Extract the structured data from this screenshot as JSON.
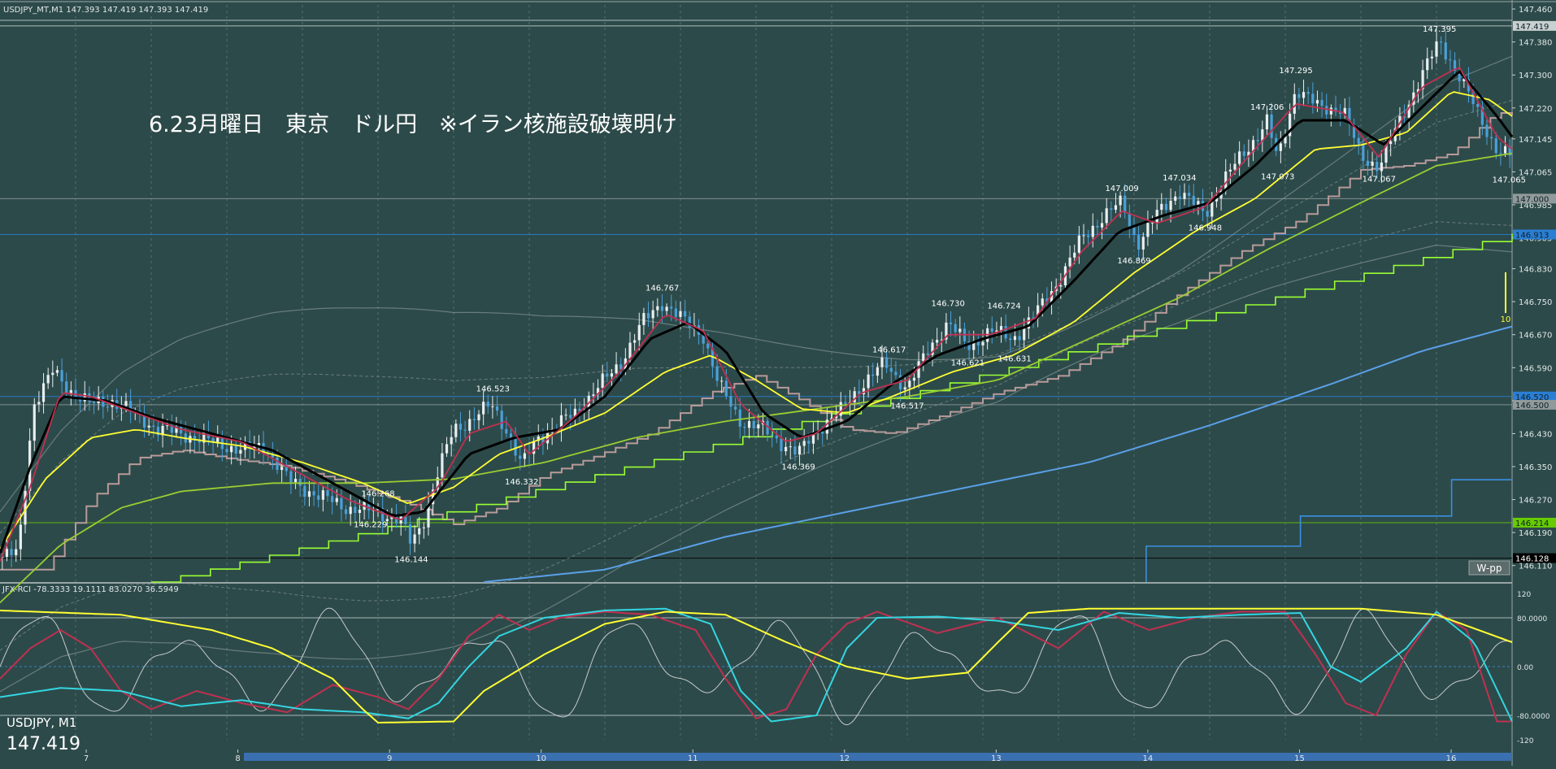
{
  "header": {
    "symbol_info": "USDJPY_MT,M1  147.393 147.419 147.393 147.419",
    "annotation": "6.23月曜日　東京　ドル円　※イラン核施設破壊明け"
  },
  "indicator_header": "JFX-RCI -78.3333 19.1111 83.0270 36.5949",
  "corner": {
    "symbol": "USDJPY, M1",
    "price": "147.419"
  },
  "wpp_label": "W-pp",
  "volume_label": "10",
  "colors": {
    "background": "#2d4a4a",
    "grid": "#6f8a8a",
    "candle_up": "#e8eef0",
    "candle_down": "#4aa0d8",
    "ma_fast": "#c03050",
    "ma_mid": "#000000",
    "ma_slow": "#ffff33",
    "ma_long": "#9acd32",
    "ichimoku": "#b89a9a",
    "step_green": "#99ff33",
    "trend_blue": "#5aa0e8",
    "rci_short": "#e0e0e0",
    "rci_mid": "#c03050",
    "rci_long": "#33d6e0",
    "rci_slow": "#ffff33"
  },
  "chart_data": {
    "type": "line",
    "price_axis": {
      "range": [
        146.07,
        147.47
      ],
      "ticks": [
        "147.460",
        "147.380",
        "147.300",
        "147.220",
        "147.145",
        "147.065",
        "146.985",
        "146.905",
        "146.830",
        "146.750",
        "146.670",
        "146.590",
        "146.510",
        "146.430",
        "146.350",
        "146.270",
        "146.190",
        "146.110"
      ]
    },
    "price_markers": [
      {
        "value": 147.419,
        "label": "147.419",
        "color": "#c8d0d0"
      },
      {
        "value": 147.0,
        "label": "147.000",
        "color": "#909a9a"
      },
      {
        "value": 146.913,
        "label": "146.913",
        "color": "#2a7fd4"
      },
      {
        "value": 146.52,
        "label": "146.520",
        "color": "#2a7fd4"
      },
      {
        "value": 146.5,
        "label": "146.500",
        "color": "#909a9a"
      },
      {
        "value": 146.214,
        "label": "146.214",
        "color": "#66cc00"
      },
      {
        "value": 146.128,
        "label": "146.128",
        "color": "#000000"
      }
    ],
    "time_axis": {
      "labels": [
        "7",
        "8",
        "9",
        "10",
        "11",
        "12",
        "13",
        "14",
        "15",
        "16"
      ]
    },
    "price_labels": [
      {
        "t": 0.245,
        "v": 146.229,
        "text": "146.229"
      },
      {
        "t": 0.25,
        "v": 146.268,
        "text": "146.268"
      },
      {
        "t": 0.272,
        "v": 146.144,
        "text": "146.144"
      },
      {
        "t": 0.326,
        "v": 146.523,
        "text": "146.523"
      },
      {
        "t": 0.345,
        "v": 146.332,
        "text": "146.332"
      },
      {
        "t": 0.438,
        "v": 146.767,
        "text": "146.767"
      },
      {
        "t": 0.528,
        "v": 146.369,
        "text": "146.369"
      },
      {
        "t": 0.588,
        "v": 146.617,
        "text": "146.617"
      },
      {
        "t": 0.6,
        "v": 146.517,
        "text": "146.517"
      },
      {
        "t": 0.627,
        "v": 146.73,
        "text": "146.730"
      },
      {
        "t": 0.64,
        "v": 146.621,
        "text": "146.621"
      },
      {
        "t": 0.664,
        "v": 146.724,
        "text": "146.724"
      },
      {
        "t": 0.671,
        "v": 146.631,
        "text": "146.631"
      },
      {
        "t": 0.742,
        "v": 147.009,
        "text": "147.009"
      },
      {
        "t": 0.75,
        "v": 146.869,
        "text": "146.869"
      },
      {
        "t": 0.78,
        "v": 147.034,
        "text": "147.034"
      },
      {
        "t": 0.797,
        "v": 146.948,
        "text": "146.948"
      },
      {
        "t": 0.838,
        "v": 147.206,
        "text": "147.206"
      },
      {
        "t": 0.845,
        "v": 147.073,
        "text": "147.073"
      },
      {
        "t": 0.857,
        "v": 147.295,
        "text": "147.295"
      },
      {
        "t": 0.912,
        "v": 147.067,
        "text": "147.067"
      },
      {
        "t": 0.952,
        "v": 147.395,
        "text": "147.395"
      },
      {
        "t": 0.998,
        "v": 147.065,
        "text": "147.065"
      }
    ],
    "price_path": [
      [
        0.0,
        146.13
      ],
      [
        0.012,
        146.14
      ],
      [
        0.022,
        146.5
      ],
      [
        0.035,
        146.58
      ],
      [
        0.045,
        146.54
      ],
      [
        0.06,
        146.5
      ],
      [
        0.075,
        146.51
      ],
      [
        0.088,
        146.48
      ],
      [
        0.105,
        146.44
      ],
      [
        0.12,
        146.43
      ],
      [
        0.14,
        146.41
      ],
      [
        0.16,
        146.39
      ],
      [
        0.175,
        146.4
      ],
      [
        0.19,
        146.32
      ],
      [
        0.21,
        146.28
      ],
      [
        0.23,
        146.25
      ],
      [
        0.25,
        146.24
      ],
      [
        0.265,
        146.22
      ],
      [
        0.272,
        146.16
      ],
      [
        0.28,
        146.22
      ],
      [
        0.29,
        146.34
      ],
      [
        0.3,
        146.44
      ],
      [
        0.31,
        146.46
      ],
      [
        0.325,
        146.5
      ],
      [
        0.335,
        146.44
      ],
      [
        0.345,
        146.35
      ],
      [
        0.355,
        146.42
      ],
      [
        0.365,
        146.44
      ],
      [
        0.38,
        146.48
      ],
      [
        0.395,
        146.54
      ],
      [
        0.41,
        146.6
      ],
      [
        0.425,
        146.7
      ],
      [
        0.438,
        146.75
      ],
      [
        0.45,
        146.71
      ],
      [
        0.465,
        146.67
      ],
      [
        0.475,
        146.55
      ],
      [
        0.49,
        146.46
      ],
      [
        0.505,
        146.44
      ],
      [
        0.52,
        146.4
      ],
      [
        0.528,
        146.38
      ],
      [
        0.54,
        146.44
      ],
      [
        0.555,
        146.48
      ],
      [
        0.57,
        146.55
      ],
      [
        0.585,
        146.6
      ],
      [
        0.6,
        146.54
      ],
      [
        0.615,
        146.64
      ],
      [
        0.627,
        146.7
      ],
      [
        0.64,
        146.64
      ],
      [
        0.655,
        146.68
      ],
      [
        0.67,
        146.66
      ],
      [
        0.685,
        146.72
      ],
      [
        0.7,
        146.8
      ],
      [
        0.715,
        146.9
      ],
      [
        0.73,
        146.96
      ],
      [
        0.742,
        146.99
      ],
      [
        0.752,
        146.89
      ],
      [
        0.765,
        146.96
      ],
      [
        0.78,
        147.02
      ],
      [
        0.797,
        146.96
      ],
      [
        0.81,
        147.05
      ],
      [
        0.825,
        147.12
      ],
      [
        0.838,
        147.19
      ],
      [
        0.845,
        147.09
      ],
      [
        0.857,
        147.27
      ],
      [
        0.872,
        147.22
      ],
      [
        0.888,
        147.22
      ],
      [
        0.9,
        147.1
      ],
      [
        0.912,
        147.08
      ],
      [
        0.925,
        147.18
      ],
      [
        0.94,
        147.3
      ],
      [
        0.952,
        147.38
      ],
      [
        0.965,
        147.3
      ],
      [
        0.978,
        147.2
      ],
      [
        0.99,
        147.12
      ],
      [
        1.0,
        147.1
      ]
    ],
    "ma_fast": [
      [
        0.0,
        146.12
      ],
      [
        0.02,
        146.3
      ],
      [
        0.04,
        146.53
      ],
      [
        0.06,
        146.52
      ],
      [
        0.09,
        146.48
      ],
      [
        0.12,
        146.44
      ],
      [
        0.16,
        146.41
      ],
      [
        0.19,
        146.35
      ],
      [
        0.23,
        146.27
      ],
      [
        0.265,
        146.22
      ],
      [
        0.29,
        146.3
      ],
      [
        0.31,
        146.43
      ],
      [
        0.335,
        146.46
      ],
      [
        0.35,
        146.38
      ],
      [
        0.38,
        146.47
      ],
      [
        0.41,
        146.58
      ],
      [
        0.44,
        146.72
      ],
      [
        0.465,
        146.68
      ],
      [
        0.49,
        146.5
      ],
      [
        0.52,
        146.41
      ],
      [
        0.54,
        146.43
      ],
      [
        0.57,
        146.53
      ],
      [
        0.6,
        146.56
      ],
      [
        0.627,
        146.67
      ],
      [
        0.655,
        146.67
      ],
      [
        0.685,
        146.71
      ],
      [
        0.715,
        146.87
      ],
      [
        0.742,
        146.97
      ],
      [
        0.765,
        146.94
      ],
      [
        0.797,
        146.98
      ],
      [
        0.825,
        147.1
      ],
      [
        0.857,
        147.23
      ],
      [
        0.888,
        147.21
      ],
      [
        0.912,
        147.1
      ],
      [
        0.94,
        147.27
      ],
      [
        0.965,
        147.32
      ],
      [
        0.99,
        147.15
      ],
      [
        1.0,
        147.12
      ]
    ],
    "ma_mid": [
      [
        0.0,
        146.14
      ],
      [
        0.02,
        146.35
      ],
      [
        0.04,
        146.52
      ],
      [
        0.07,
        146.51
      ],
      [
        0.1,
        146.47
      ],
      [
        0.14,
        146.43
      ],
      [
        0.18,
        146.39
      ],
      [
        0.22,
        146.31
      ],
      [
        0.26,
        146.23
      ],
      [
        0.28,
        146.24
      ],
      [
        0.31,
        146.38
      ],
      [
        0.34,
        146.42
      ],
      [
        0.37,
        146.44
      ],
      [
        0.4,
        146.52
      ],
      [
        0.43,
        146.66
      ],
      [
        0.455,
        146.7
      ],
      [
        0.48,
        146.63
      ],
      [
        0.505,
        146.48
      ],
      [
        0.53,
        146.42
      ],
      [
        0.56,
        146.46
      ],
      [
        0.59,
        146.55
      ],
      [
        0.62,
        146.62
      ],
      [
        0.65,
        146.66
      ],
      [
        0.68,
        146.69
      ],
      [
        0.71,
        146.8
      ],
      [
        0.74,
        146.92
      ],
      [
        0.77,
        146.96
      ],
      [
        0.8,
        146.99
      ],
      [
        0.83,
        147.08
      ],
      [
        0.86,
        147.19
      ],
      [
        0.89,
        147.19
      ],
      [
        0.915,
        147.13
      ],
      [
        0.94,
        147.22
      ],
      [
        0.965,
        147.31
      ],
      [
        0.99,
        147.2
      ],
      [
        1.0,
        147.15
      ]
    ],
    "ma_slow": [
      [
        0.0,
        146.15
      ],
      [
        0.03,
        146.32
      ],
      [
        0.06,
        146.42
      ],
      [
        0.09,
        146.44
      ],
      [
        0.12,
        146.42
      ],
      [
        0.16,
        146.4
      ],
      [
        0.2,
        146.36
      ],
      [
        0.24,
        146.31
      ],
      [
        0.27,
        146.26
      ],
      [
        0.3,
        146.3
      ],
      [
        0.33,
        146.38
      ],
      [
        0.36,
        146.42
      ],
      [
        0.4,
        146.48
      ],
      [
        0.44,
        146.58
      ],
      [
        0.47,
        146.62
      ],
      [
        0.5,
        146.56
      ],
      [
        0.53,
        146.49
      ],
      [
        0.56,
        146.48
      ],
      [
        0.59,
        146.52
      ],
      [
        0.63,
        146.58
      ],
      [
        0.67,
        146.62
      ],
      [
        0.71,
        146.7
      ],
      [
        0.75,
        146.82
      ],
      [
        0.79,
        146.92
      ],
      [
        0.83,
        147.0
      ],
      [
        0.87,
        147.12
      ],
      [
        0.9,
        147.13
      ],
      [
        0.93,
        147.16
      ],
      [
        0.96,
        147.26
      ],
      [
        0.985,
        147.24
      ],
      [
        1.0,
        147.2
      ]
    ],
    "ma_long": [
      [
        0.0,
        146.02
      ],
      [
        0.04,
        146.16
      ],
      [
        0.08,
        146.25
      ],
      [
        0.12,
        146.29
      ],
      [
        0.18,
        146.31
      ],
      [
        0.24,
        146.31
      ],
      [
        0.3,
        146.32
      ],
      [
        0.36,
        146.36
      ],
      [
        0.42,
        146.42
      ],
      [
        0.48,
        146.46
      ],
      [
        0.54,
        146.49
      ],
      [
        0.6,
        146.52
      ],
      [
        0.66,
        146.56
      ],
      [
        0.72,
        146.66
      ],
      [
        0.78,
        146.76
      ],
      [
        0.84,
        146.88
      ],
      [
        0.9,
        146.99
      ],
      [
        0.95,
        147.08
      ],
      [
        1.0,
        147.11
      ]
    ],
    "trend_blue": [
      [
        0.32,
        146.07
      ],
      [
        0.4,
        146.1
      ],
      [
        0.48,
        146.18
      ],
      [
        0.56,
        146.24
      ],
      [
        0.64,
        146.3
      ],
      [
        0.72,
        146.36
      ],
      [
        0.8,
        146.45
      ],
      [
        0.88,
        146.55
      ],
      [
        0.94,
        146.63
      ],
      [
        1.0,
        146.69
      ]
    ],
    "rci_axis": {
      "range": [
        -120,
        120
      ],
      "ticks": [
        "120",
        "80.0000",
        "0.00",
        "-80.0000",
        "-120"
      ]
    },
    "rci_short": {
      "period_points": 88,
      "amplitude": 90
    },
    "rci_long": [
      [
        0.0,
        -50
      ],
      [
        0.04,
        -35
      ],
      [
        0.08,
        -40
      ],
      [
        0.12,
        -65
      ],
      [
        0.16,
        -55
      ],
      [
        0.2,
        -70
      ],
      [
        0.24,
        -75
      ],
      [
        0.27,
        -85
      ],
      [
        0.29,
        -60
      ],
      [
        0.31,
        0
      ],
      [
        0.33,
        50
      ],
      [
        0.36,
        80
      ],
      [
        0.4,
        92
      ],
      [
        0.44,
        95
      ],
      [
        0.47,
        70
      ],
      [
        0.49,
        -40
      ],
      [
        0.51,
        -90
      ],
      [
        0.54,
        -80
      ],
      [
        0.56,
        30
      ],
      [
        0.58,
        80
      ],
      [
        0.62,
        82
      ],
      [
        0.66,
        75
      ],
      [
        0.7,
        60
      ],
      [
        0.74,
        88
      ],
      [
        0.78,
        80
      ],
      [
        0.82,
        85
      ],
      [
        0.86,
        88
      ],
      [
        0.88,
        0
      ],
      [
        0.9,
        -25
      ],
      [
        0.93,
        30
      ],
      [
        0.95,
        90
      ],
      [
        0.975,
        40
      ],
      [
        1.0,
        -90
      ]
    ],
    "rci_mid": [
      [
        0.0,
        -20
      ],
      [
        0.02,
        30
      ],
      [
        0.04,
        60
      ],
      [
        0.06,
        30
      ],
      [
        0.08,
        -40
      ],
      [
        0.1,
        -70
      ],
      [
        0.13,
        -40
      ],
      [
        0.16,
        -60
      ],
      [
        0.19,
        -75
      ],
      [
        0.22,
        -30
      ],
      [
        0.25,
        -50
      ],
      [
        0.27,
        -70
      ],
      [
        0.29,
        -20
      ],
      [
        0.31,
        50
      ],
      [
        0.33,
        85
      ],
      [
        0.35,
        60
      ],
      [
        0.37,
        80
      ],
      [
        0.4,
        90
      ],
      [
        0.43,
        85
      ],
      [
        0.46,
        60
      ],
      [
        0.48,
        -20
      ],
      [
        0.5,
        -85
      ],
      [
        0.52,
        -70
      ],
      [
        0.54,
        20
      ],
      [
        0.56,
        70
      ],
      [
        0.58,
        90
      ],
      [
        0.62,
        55
      ],
      [
        0.66,
        80
      ],
      [
        0.7,
        30
      ],
      [
        0.73,
        90
      ],
      [
        0.76,
        60
      ],
      [
        0.79,
        80
      ],
      [
        0.82,
        90
      ],
      [
        0.85,
        90
      ],
      [
        0.87,
        20
      ],
      [
        0.89,
        -60
      ],
      [
        0.91,
        -80
      ],
      [
        0.93,
        20
      ],
      [
        0.95,
        90
      ],
      [
        0.97,
        60
      ],
      [
        0.99,
        -90
      ],
      [
        1.0,
        -90
      ]
    ],
    "rci_slow": [
      [
        0.0,
        92
      ],
      [
        0.08,
        85
      ],
      [
        0.14,
        60
      ],
      [
        0.18,
        30
      ],
      [
        0.22,
        -20
      ],
      [
        0.24,
        -70
      ],
      [
        0.25,
        -92
      ],
      [
        0.3,
        -90
      ],
      [
        0.32,
        -40
      ],
      [
        0.36,
        20
      ],
      [
        0.4,
        70
      ],
      [
        0.44,
        90
      ],
      [
        0.48,
        85
      ],
      [
        0.52,
        40
      ],
      [
        0.56,
        0
      ],
      [
        0.6,
        -20
      ],
      [
        0.64,
        -10
      ],
      [
        0.66,
        40
      ],
      [
        0.68,
        88
      ],
      [
        0.72,
        95
      ],
      [
        0.8,
        95
      ],
      [
        0.86,
        95
      ],
      [
        0.9,
        95
      ],
      [
        0.95,
        85
      ],
      [
        1.0,
        40
      ]
    ]
  }
}
